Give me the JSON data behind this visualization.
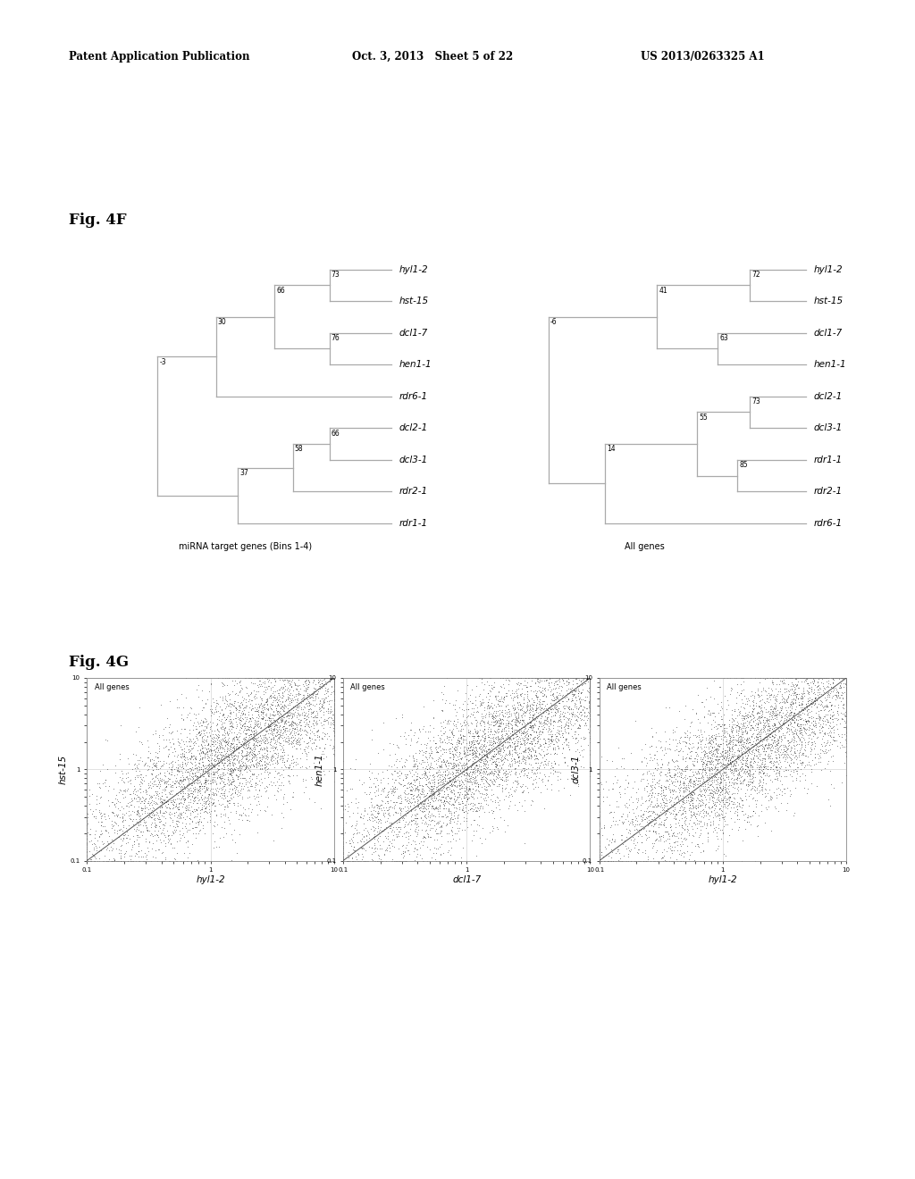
{
  "header_left": "Patent Application Publication",
  "header_center": "Oct. 3, 2013   Sheet 5 of 22",
  "header_right": "US 2013/0263325 A1",
  "fig4f_label": "Fig. 4F",
  "fig4g_label": "Fig. 4G",
  "tree1_title": "miRNA target genes (Bins 1-4)",
  "tree2_title": "All genes",
  "tree1_leaves": [
    "hyl1-2",
    "hst-15",
    "dcl1-7",
    "hen1-1",
    "rdr6-1",
    "dcl2-1",
    "dcl3-1",
    "rdr2-1",
    "rdr1-1"
  ],
  "tree2_leaves": [
    "hyl1-2",
    "hst-15",
    "dcl1-7",
    "hen1-1",
    "dcl2-1",
    "dcl3-1",
    "rdr1-1",
    "rdr2-1",
    "rdr6-1"
  ],
  "scatter_configs": [
    {
      "xlabel": "hyl1-2",
      "ylabel": "hst-15"
    },
    {
      "xlabel": "dcl1-7",
      "ylabel": "hen1-1"
    },
    {
      "xlabel": "hyl1-2",
      "ylabel": "dcl3-1"
    }
  ],
  "background_color": "#ffffff"
}
